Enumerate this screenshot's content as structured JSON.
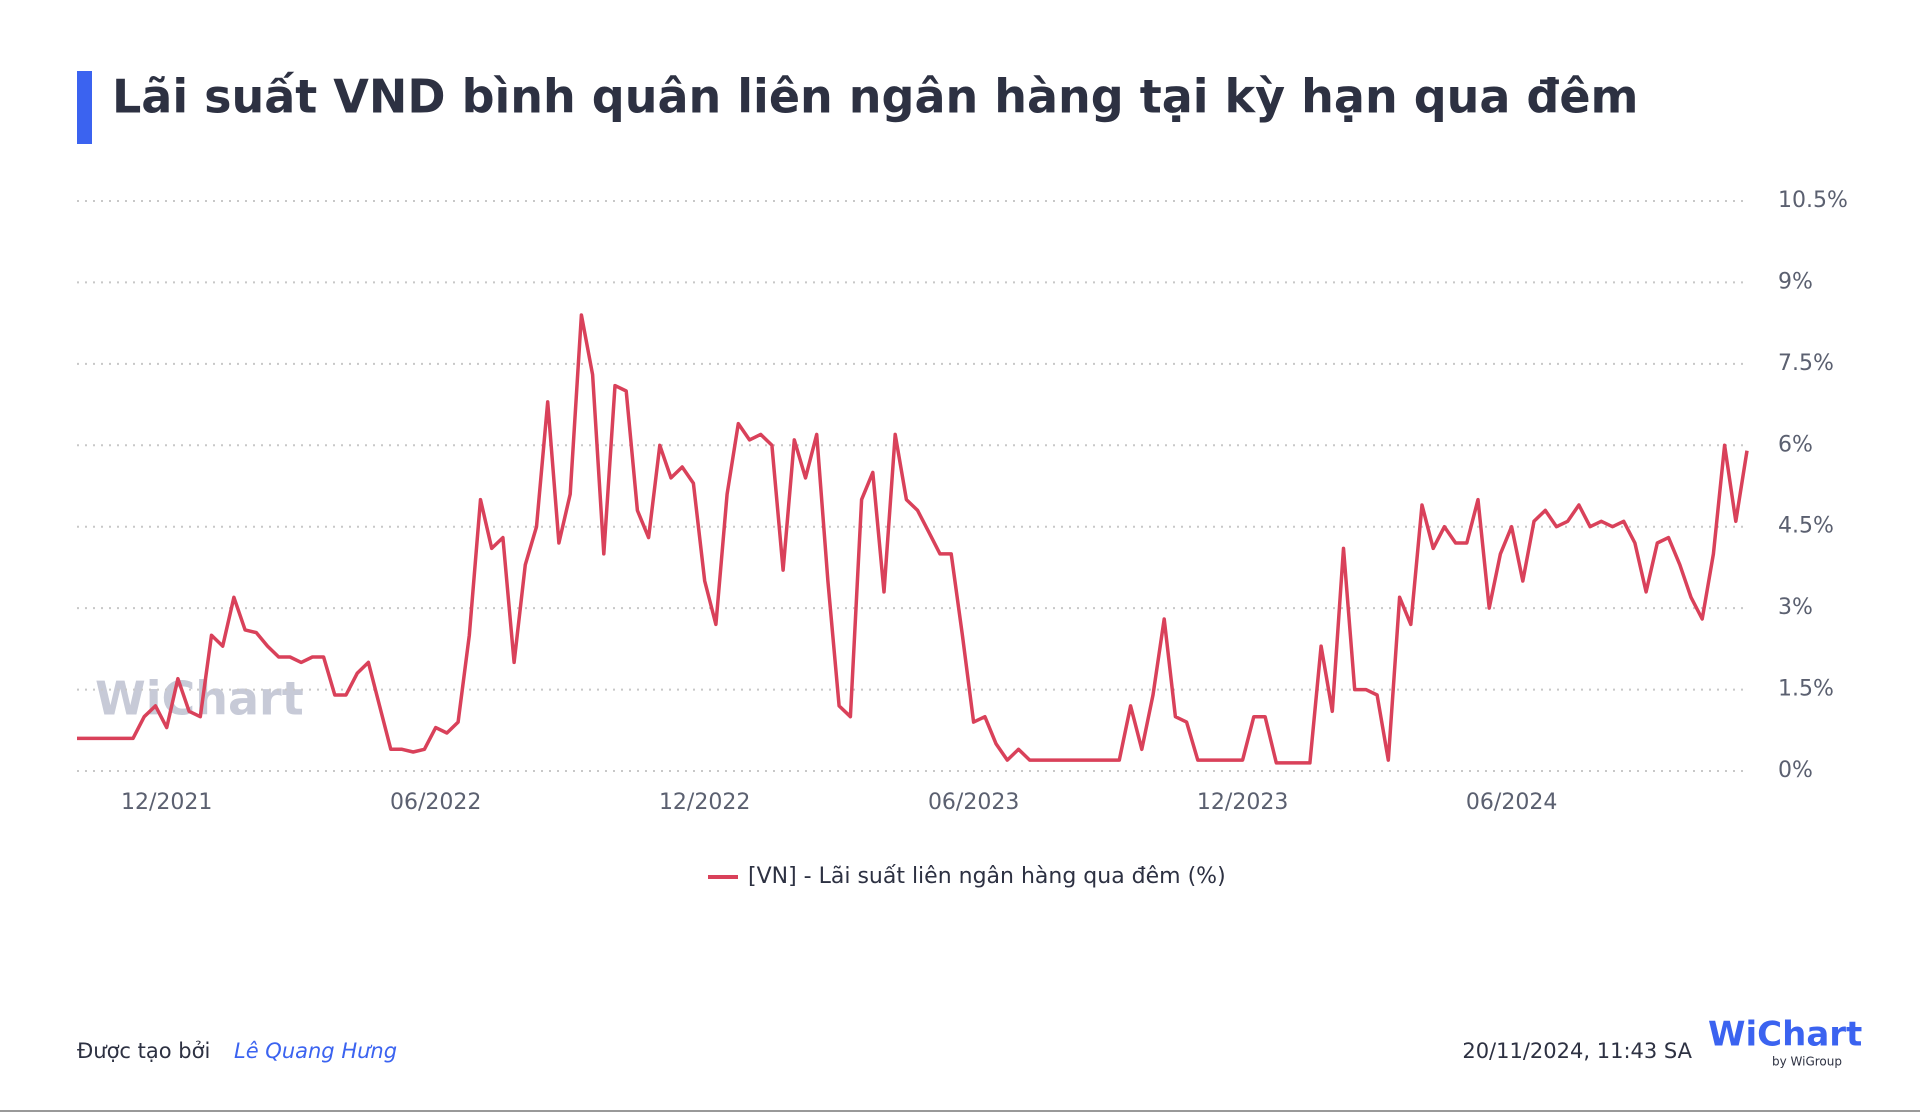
{
  "chart_data": {
    "type": "line",
    "title": "Lãi suất VND bình quân liên ngân hàng tại kỳ hạn qua đêm",
    "categories": [
      null,
      null,
      null,
      null,
      null,
      null,
      null,
      null,
      "12/2021",
      null,
      null,
      null,
      null,
      null,
      null,
      null,
      null,
      null,
      null,
      null,
      null,
      null,
      null,
      null,
      null,
      null,
      null,
      null,
      null,
      null,
      null,
      null,
      "06/2022",
      null,
      null,
      null,
      null,
      null,
      null,
      null,
      null,
      null,
      null,
      null,
      null,
      null,
      null,
      null,
      null,
      null,
      null,
      null,
      null,
      null,
      null,
      null,
      "12/2022",
      null,
      null,
      null,
      null,
      null,
      null,
      null,
      null,
      null,
      null,
      null,
      null,
      null,
      null,
      null,
      null,
      null,
      null,
      null,
      null,
      null,
      null,
      null,
      "06/2023",
      null,
      null,
      null,
      null,
      null,
      null,
      null,
      null,
      null,
      null,
      null,
      null,
      null,
      null,
      null,
      null,
      null,
      null,
      null,
      null,
      null,
      null,
      null,
      "12/2023",
      null,
      null,
      null,
      null,
      null,
      null,
      null,
      null,
      null,
      null,
      null,
      null,
      null,
      null,
      null,
      null,
      null,
      null,
      null,
      null,
      null,
      null,
      null,
      "06/2024",
      null,
      null,
      null,
      null,
      null,
      null,
      null,
      null,
      null,
      null,
      null,
      null,
      null,
      null,
      null,
      null,
      null,
      null,
      null,
      null,
      null
    ],
    "series": [
      {
        "name": "[VN] - Lãi suất liên ngân hàng qua đêm (%)",
        "color": "#d9415a",
        "values": [
          0.6,
          0.6,
          0.6,
          0.6,
          0.6,
          0.6,
          1.0,
          1.2,
          0.8,
          1.7,
          1.1,
          1.0,
          2.5,
          2.3,
          3.2,
          2.6,
          2.55,
          2.3,
          2.1,
          2.1,
          2.0,
          2.1,
          2.1,
          1.4,
          1.4,
          1.8,
          2.0,
          1.2,
          0.4,
          0.4,
          0.35,
          0.4,
          0.8,
          0.7,
          0.9,
          2.5,
          5.0,
          4.1,
          4.3,
          2.0,
          3.8,
          4.5,
          6.8,
          4.2,
          5.1,
          8.4,
          7.3,
          4.0,
          7.1,
          7.0,
          4.8,
          4.3,
          6.0,
          5.4,
          5.6,
          5.3,
          3.5,
          2.7,
          5.1,
          6.4,
          6.1,
          6.2,
          6.0,
          3.7,
          6.1,
          5.4,
          6.2,
          3.5,
          1.2,
          1.0,
          5.0,
          5.5,
          3.3,
          6.2,
          5.0,
          4.8,
          4.4,
          4.0,
          4.0,
          2.5,
          0.9,
          1.0,
          0.5,
          0.2,
          0.4,
          0.2,
          0.2,
          0.2,
          0.2,
          0.2,
          0.2,
          0.2,
          0.2,
          0.2,
          1.2,
          0.4,
          1.4,
          2.8,
          1.0,
          0.9,
          0.2,
          0.2,
          0.2,
          0.2,
          0.2,
          1.0,
          1.0,
          0.15,
          0.15,
          0.15,
          0.15,
          2.3,
          1.1,
          4.1,
          1.5,
          1.5,
          1.4,
          0.2,
          3.2,
          2.7,
          4.9,
          4.1,
          4.5,
          4.2,
          4.2,
          5.0,
          3.0,
          4.0,
          4.5,
          3.5,
          4.6,
          4.8,
          4.5,
          4.6,
          4.9,
          4.5,
          4.6,
          4.5,
          4.6,
          4.2,
          3.3,
          4.2,
          4.3,
          3.8,
          3.2,
          2.8,
          4.0,
          6.0,
          4.6,
          5.9
        ]
      }
    ],
    "ylim": [
      0,
      10.5
    ],
    "yticks": [
      {
        "value": 0,
        "label": "0%"
      },
      {
        "value": 1.5,
        "label": "1.5%"
      },
      {
        "value": 3,
        "label": "3%"
      },
      {
        "value": 4.5,
        "label": "4.5%"
      },
      {
        "value": 6,
        "label": "6%"
      },
      {
        "value": 7.5,
        "label": "7.5%"
      },
      {
        "value": 9,
        "label": "9%"
      },
      {
        "value": 10.5,
        "label": "10.5%"
      }
    ],
    "grid": true
  },
  "footer": {
    "created_by": "Được tạo bởi",
    "author": "Lê Quang Hưng",
    "timestamp": "20/11/2024, 11:43 SA",
    "logo": "WiChart",
    "logo_sub": "by WiGroup",
    "watermark": "WiChart"
  }
}
